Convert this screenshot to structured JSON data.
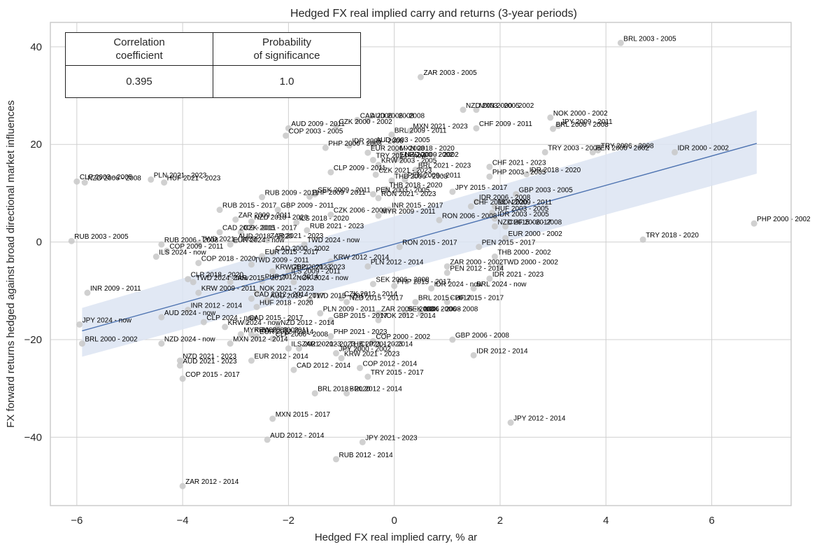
{
  "chart_data": {
    "type": "scatter",
    "title": "Hedged FX real implied carry and returns (3-year periods)",
    "xlabel": "Hedged FX real implied carry, % ar",
    "ylabel": "FX forward returns hedged against broad directional market influences",
    "xlim": [
      -6.5,
      7.5
    ],
    "ylim": [
      -54,
      45
    ],
    "xticks": [
      -6,
      -4,
      -2,
      0,
      2,
      4,
      6
    ],
    "yticks": [
      -40,
      -20,
      0,
      20,
      40
    ],
    "xtick_labels": [
      "−6",
      "−4",
      "−2",
      "0",
      "2",
      "4",
      "6"
    ],
    "ytick_labels": [
      "−40",
      "−20",
      "0",
      "20",
      "40"
    ],
    "grid": true,
    "colors": {
      "points": "#c8c8c8",
      "regression": "#4c72b0",
      "band": "#dce4f2",
      "grid": "#d0d0d0"
    },
    "regression": {
      "x": [
        -5.9,
        6.85
      ],
      "y": [
        -18.2,
        20.2
      ],
      "ci_lower": [
        -23.5,
        14.0
      ],
      "ci_upper": [
        -13.5,
        27.0
      ]
    },
    "stats_table": {
      "headers": [
        "Correlation\ncoefficient",
        "Probability\nof significance"
      ],
      "values": [
        "0.395",
        "1.0"
      ]
    },
    "points": [
      {
        "label": "BRL 2003 - 2005",
        "x": 4.28,
        "y": 40.8
      },
      {
        "label": "ZAR 2003 - 2005",
        "x": 0.5,
        "y": 33.8
      },
      {
        "label": "NZD 2003 - 2005",
        "x": 1.3,
        "y": 27.1
      },
      {
        "label": "MXN 2000 - 2002",
        "x": 1.55,
        "y": 27.1
      },
      {
        "label": "NOK 2000 - 2002",
        "x": 2.95,
        "y": 25.5
      },
      {
        "label": "JPY 2009 - 2011",
        "x": 3.1,
        "y": 23.8
      },
      {
        "label": "BRL 2006 - 2008",
        "x": 3.0,
        "y": 23.2
      },
      {
        "label": "CHF 2009 - 2011",
        "x": 1.55,
        "y": 23.3
      },
      {
        "label": "CAD 2006 - 2008",
        "x": -0.7,
        "y": 25.0
      },
      {
        "label": "AUD 2006 - 2008",
        "x": -0.5,
        "y": 25.0
      },
      {
        "label": "CZK 2000 - 2002",
        "x": -1.1,
        "y": 23.8
      },
      {
        "label": "AUD 2009 - 2011",
        "x": -2.0,
        "y": 23.3
      },
      {
        "label": "COP 2003 - 2005",
        "x": -2.05,
        "y": 21.8
      },
      {
        "label": "BRL 2009 - 2011",
        "x": -0.05,
        "y": 22.0
      },
      {
        "label": "MXN 2021 - 2023",
        "x": 0.3,
        "y": 22.8
      },
      {
        "label": "PHP 2006 - 2008",
        "x": -1.3,
        "y": 19.3
      },
      {
        "label": "IDR 2006 - 2008",
        "x": -0.85,
        "y": 19.8
      },
      {
        "label": "AUD 2003 - 2005",
        "x": -0.4,
        "y": 20.0
      },
      {
        "label": "EUR 2006 - 2008",
        "x": -0.5,
        "y": 18.3
      },
      {
        "label": "MXN 2018 - 2020",
        "x": 0.05,
        "y": 18.3
      },
      {
        "label": "TRY 2024 - now",
        "x": -0.4,
        "y": 16.8
      },
      {
        "label": "KRW 2003 - 2005",
        "x": -0.3,
        "y": 15.8
      },
      {
        "label": "EUR 2000 - 2002",
        "x": 0.05,
        "y": 17.0
      },
      {
        "label": "NZD 2000 - 2002",
        "x": 0.15,
        "y": 17.0
      },
      {
        "label": "BRL 2021 - 2023",
        "x": 0.4,
        "y": 14.8
      },
      {
        "label": "CHF 2021 - 2023",
        "x": 1.8,
        "y": 15.4
      },
      {
        "label": "PHP 2003 - 2005",
        "x": 1.8,
        "y": 13.4
      },
      {
        "label": "IDR 2018 - 2020",
        "x": 2.5,
        "y": 13.9
      },
      {
        "label": "TRY 2003 - 2005",
        "x": 2.85,
        "y": 18.4
      },
      {
        "label": "PEN 2000 - 2002",
        "x": 3.75,
        "y": 18.4
      },
      {
        "label": "TRY 2006 - 2008",
        "x": 3.85,
        "y": 18.8
      },
      {
        "label": "IDR 2000 - 2002",
        "x": 5.3,
        "y": 18.4
      },
      {
        "label": "CLP 2009 - 2011",
        "x": -1.2,
        "y": 14.3
      },
      {
        "label": "CZK 2021 - 2023",
        "x": -0.35,
        "y": 13.8
      },
      {
        "label": "THB 2006 - 2008",
        "x": -0.05,
        "y": 12.6
      },
      {
        "label": "PEN 2009 - 2011",
        "x": 0.2,
        "y": 12.8
      },
      {
        "label": "CLP 2003 - 2005",
        "x": -6.0,
        "y": 12.4
      },
      {
        "label": "NZD 2006 - 2008",
        "x": -5.85,
        "y": 12.2
      },
      {
        "label": "PLN 2021 - 2023",
        "x": -4.6,
        "y": 12.8
      },
      {
        "label": "HUF 2021 - 2023",
        "x": -4.35,
        "y": 12.2
      },
      {
        "label": "THB 2018 - 2020",
        "x": -0.15,
        "y": 10.8
      },
      {
        "label": "JPY 2015 - 2017",
        "x": 1.1,
        "y": 10.3
      },
      {
        "label": "GBP 2003 - 2005",
        "x": 2.3,
        "y": 9.8
      },
      {
        "label": "RUB 2009 - 2011",
        "x": -2.5,
        "y": 9.2
      },
      {
        "label": "SEK 2009 - 2011",
        "x": -1.5,
        "y": 9.8
      },
      {
        "label": "PHP 2009 - 2011",
        "x": -1.6,
        "y": 9.3
      },
      {
        "label": "PEN 2003 - 2005",
        "x": -0.4,
        "y": 9.8
      },
      {
        "label": "RON 2021 - 2023",
        "x": -0.3,
        "y": 9.0
      },
      {
        "label": "IDR 2006 - 2008",
        "x": 1.55,
        "y": 8.3
      },
      {
        "label": "RUB 2015 - 2017",
        "x": -3.3,
        "y": 6.6
      },
      {
        "label": "GBP 2009 - 2011",
        "x": -2.2,
        "y": 6.6
      },
      {
        "label": "CHF 2018 - 2020",
        "x": 1.45,
        "y": 7.3
      },
      {
        "label": "RON 2009 - 2011",
        "x": 1.9,
        "y": 7.3
      },
      {
        "label": "HUF 2003 - 2005",
        "x": 1.85,
        "y": 6.0
      },
      {
        "label": "INR 2015 - 2017",
        "x": -0.1,
        "y": 6.6
      },
      {
        "label": "CZK 2006 - 2008",
        "x": -1.2,
        "y": 5.6
      },
      {
        "label": "MYR 2009 - 2011",
        "x": -0.3,
        "y": 5.4
      },
      {
        "label": "IDR 2003 - 2005",
        "x": 1.9,
        "y": 4.8
      },
      {
        "label": "RON 2006 - 2008",
        "x": 0.85,
        "y": 4.5
      },
      {
        "label": "ZAR 2009 - 2011",
        "x": -3.0,
        "y": 4.6
      },
      {
        "label": "NZD 2018 - 2020",
        "x": -2.7,
        "y": 4.2
      },
      {
        "label": "ILS 2018 - 2020",
        "x": -1.85,
        "y": 4.0
      },
      {
        "label": "NZD 2015 - 2017",
        "x": 1.9,
        "y": 3.2
      },
      {
        "label": "CHF 2006 - 2008",
        "x": 2.1,
        "y": 3.2
      },
      {
        "label": "CAD 2009 - 2011",
        "x": -3.3,
        "y": 2.0
      },
      {
        "label": "CZK 2015 - 2017",
        "x": -2.9,
        "y": 2.0
      },
      {
        "label": "RUB 2021 - 2023",
        "x": -1.65,
        "y": 2.4
      },
      {
        "label": "EUR 2000 - 2002",
        "x": 2.1,
        "y": 0.8
      },
      {
        "label": "AUD 2018 - 2020",
        "x": -3.0,
        "y": 0.3
      },
      {
        "label": "ZAR 2021 - 2023",
        "x": -2.4,
        "y": 0.4
      },
      {
        "label": "RUB 2003 - 2005",
        "x": -6.1,
        "y": 0.2
      },
      {
        "label": "RUB 2006 - 2008",
        "x": -4.4,
        "y": -0.5
      },
      {
        "label": "TWD 2021 - 2023",
        "x": -3.7,
        "y": -0.3
      },
      {
        "label": "EUR 2024 - now",
        "x": -3.1,
        "y": -0.5
      },
      {
        "label": "TWD 2024 - now",
        "x": -1.7,
        "y": -0.5
      },
      {
        "label": "COP 2009 - 2011",
        "x": -4.3,
        "y": -1.8
      },
      {
        "label": "ILS 2024 - now",
        "x": -4.5,
        "y": -3.0
      },
      {
        "label": "COP 2018 - 2020",
        "x": -3.7,
        "y": -4.3
      },
      {
        "label": "EUR 2015 - 2017",
        "x": -2.5,
        "y": -2.9
      },
      {
        "label": "CAD 2000 - 2002",
        "x": -2.3,
        "y": -2.2
      },
      {
        "label": "PEN 2015 - 2017",
        "x": 1.6,
        "y": -1.0
      },
      {
        "label": "RON 2015 - 2017",
        "x": 0.1,
        "y": -1.0
      },
      {
        "label": "THB 2000 - 2002",
        "x": 1.9,
        "y": -3.0
      },
      {
        "label": "TWD 2009 - 2011",
        "x": -2.7,
        "y": -4.6
      },
      {
        "label": "KRW 2012 - 2014",
        "x": -1.2,
        "y": -4.0
      },
      {
        "label": "ZAR 2000 - 2002",
        "x": 1.0,
        "y": -5.0
      },
      {
        "label": "TWD 2000 - 2002",
        "x": 2.0,
        "y": -5.0
      },
      {
        "label": "PEN 2012 - 2014",
        "x": 1.0,
        "y": -6.3
      },
      {
        "label": "PLN 2012 - 2014",
        "x": -0.5,
        "y": -5.0
      },
      {
        "label": "KRW 2021 - 2023",
        "x": -2.3,
        "y": -6.0
      },
      {
        "label": "GBP 2021 - 2023",
        "x": -2.0,
        "y": -6.0
      },
      {
        "label": "ILS 2009 - 2011",
        "x": -2.0,
        "y": -6.9
      },
      {
        "label": "CLP 2018 - 2020",
        "x": -3.9,
        "y": -7.6
      },
      {
        "label": "TWD 2024 - now",
        "x": -3.8,
        "y": -8.2
      },
      {
        "label": "ZAR 2015 - 2017",
        "x": -3.1,
        "y": -8.2
      },
      {
        "label": "PHP 2012 - 2014",
        "x": -2.5,
        "y": -8.0
      },
      {
        "label": "NOK 2024 - now",
        "x": -1.9,
        "y": -8.2
      },
      {
        "label": "SEK 2006 - 2008",
        "x": -0.4,
        "y": -8.6
      },
      {
        "label": "PHP 2015 - 2017",
        "x": 0.0,
        "y": -9.0
      },
      {
        "label": "IDR 2024 - now",
        "x": 0.7,
        "y": -9.5
      },
      {
        "label": "BRL 2024 - now",
        "x": 1.5,
        "y": -9.5
      },
      {
        "label": "IDR 2021 - 2023",
        "x": 1.8,
        "y": -7.5
      },
      {
        "label": "INR 2009 - 2011",
        "x": -5.8,
        "y": -10.4
      },
      {
        "label": "KRW 2009 - 2011",
        "x": -3.7,
        "y": -10.4
      },
      {
        "label": "NOK 2021 - 2023",
        "x": -2.6,
        "y": -10.4
      },
      {
        "label": "CAD 2012 - 2014",
        "x": -2.7,
        "y": -11.6
      },
      {
        "label": "AUD 2015 - 2017",
        "x": -2.4,
        "y": -11.9
      },
      {
        "label": "TWD 2015 - 2017",
        "x": -1.6,
        "y": -11.9
      },
      {
        "label": "CZK 2012 - 2014",
        "x": -1.0,
        "y": -11.5
      },
      {
        "label": "NZD 2015 - 2017",
        "x": -0.9,
        "y": -12.3
      },
      {
        "label": "BRL 2015 - 2017",
        "x": 0.4,
        "y": -12.3
      },
      {
        "label": "CHF 2015 - 2017",
        "x": 1.0,
        "y": -12.3
      },
      {
        "label": "INR 2012 - 2014",
        "x": -3.9,
        "y": -13.9
      },
      {
        "label": "HUF 2018 - 2020",
        "x": -2.6,
        "y": -13.3
      },
      {
        "label": "PLN 2009 - 2011",
        "x": -1.4,
        "y": -14.6
      },
      {
        "label": "ZAR 2006 - 2008",
        "x": -0.3,
        "y": -14.6
      },
      {
        "label": "SEK 2006 - 2008",
        "x": 0.2,
        "y": -14.6
      },
      {
        "label": "NOK 2006 - 2008",
        "x": 0.5,
        "y": -14.6
      },
      {
        "label": "GBP 2015 - 2017",
        "x": -1.2,
        "y": -16.0
      },
      {
        "label": "NOK 2012 - 2014",
        "x": -0.3,
        "y": -16.0
      },
      {
        "label": "AUD 2024 - now",
        "x": -4.4,
        "y": -15.4
      },
      {
        "label": "JPY 2024 - now",
        "x": -5.95,
        "y": -16.9
      },
      {
        "label": "CLP 2024 - now",
        "x": -3.6,
        "y": -16.4
      },
      {
        "label": "CAD 2015 - 2017",
        "x": -2.8,
        "y": -16.4
      },
      {
        "label": "KRW 2024 - now",
        "x": -3.2,
        "y": -17.4
      },
      {
        "label": "NZD 2012 - 2014",
        "x": -2.2,
        "y": -17.4
      },
      {
        "label": "MYR 2006 - 2008",
        "x": -2.9,
        "y": -18.9
      },
      {
        "label": "KRW 2009 - 2011",
        "x": -2.7,
        "y": -18.9
      },
      {
        "label": "EUR 2012 - 2014",
        "x": -2.6,
        "y": -19.3
      },
      {
        "label": "CLP 2006 - 2008",
        "x": -2.3,
        "y": -19.8
      },
      {
        "label": "PHP 2021 - 2023",
        "x": -1.2,
        "y": -19.3
      },
      {
        "label": "COP 2000 - 2002",
        "x": -0.4,
        "y": -20.3
      },
      {
        "label": "BRL 2000 - 2002",
        "x": -5.9,
        "y": -20.8
      },
      {
        "label": "NZD 2024 - now",
        "x": -4.4,
        "y": -20.8
      },
      {
        "label": "MXN 2012 - 2014",
        "x": -3.1,
        "y": -20.8
      },
      {
        "label": "ILS 2021 - 2023",
        "x": -2.0,
        "y": -21.8
      },
      {
        "label": "ZAR 2021 - 2023",
        "x": -1.8,
        "y": -21.8
      },
      {
        "label": "THB 2021 - 2023",
        "x": -0.9,
        "y": -21.8
      },
      {
        "label": "CLP 2012 - 2014",
        "x": -0.7,
        "y": -21.8
      },
      {
        "label": "GBP 2006 - 2008",
        "x": 1.1,
        "y": -20.0
      },
      {
        "label": "JPY 2000 - 2002",
        "x": -1.1,
        "y": -22.8
      },
      {
        "label": "KRW 2021 - 2023",
        "x": -1.0,
        "y": -23.8
      },
      {
        "label": "IDR 2012 - 2014",
        "x": 1.5,
        "y": -23.2
      },
      {
        "label": "NZD 2021 - 2023",
        "x": -4.05,
        "y": -24.3
      },
      {
        "label": "AUD 2021 - 2023",
        "x": -4.05,
        "y": -25.3
      },
      {
        "label": "EUR 2012 - 2014",
        "x": -2.7,
        "y": -24.3
      },
      {
        "label": "CAD 2012 - 2014",
        "x": -1.9,
        "y": -26.2
      },
      {
        "label": "COP 2012 - 2014",
        "x": -0.65,
        "y": -25.8
      },
      {
        "label": "TRY 2015 - 2017",
        "x": -0.5,
        "y": -27.6
      },
      {
        "label": "COP 2015 - 2017",
        "x": -4.0,
        "y": -28.0
      },
      {
        "label": "BRL 2018 - 2020",
        "x": -1.5,
        "y": -31.0
      },
      {
        "label": "BRL 2012 - 2014",
        "x": -0.9,
        "y": -31.0
      },
      {
        "label": "MXN 2015 - 2017",
        "x": -2.3,
        "y": -36.2
      },
      {
        "label": "JPY 2012 - 2014",
        "x": 2.2,
        "y": -37.0
      },
      {
        "label": "AUD 2012 - 2014",
        "x": -2.4,
        "y": -40.5
      },
      {
        "label": "JPY 2021 - 2023",
        "x": -0.6,
        "y": -41.0
      },
      {
        "label": "RUB 2012 - 2014",
        "x": -1.1,
        "y": -44.5
      },
      {
        "label": "ZAR 2012 - 2014",
        "x": -4.0,
        "y": -50.0
      },
      {
        "label": "TRY 2018 - 2020",
        "x": 4.7,
        "y": 0.5
      },
      {
        "label": "PHP 2000 - 2002",
        "x": 6.8,
        "y": 3.8
      }
    ]
  }
}
